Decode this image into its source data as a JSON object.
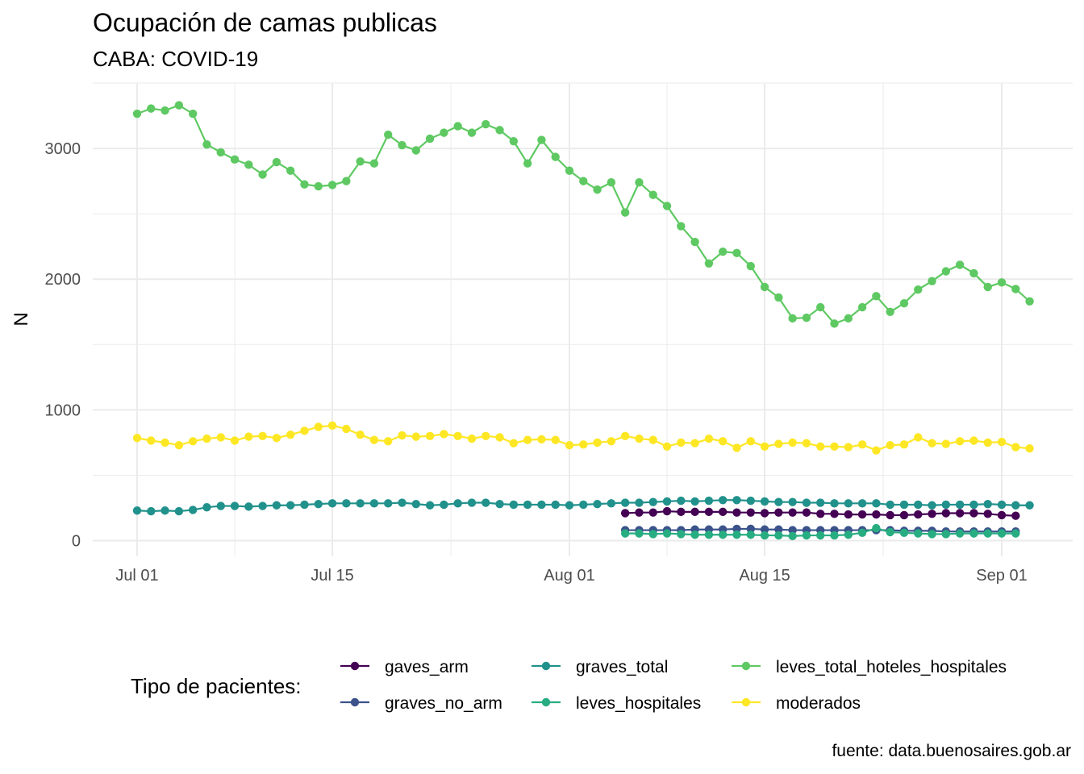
{
  "chart_data": {
    "type": "line",
    "title": "Ocupación de camas publicas",
    "subtitle": "CABA: COVID-19",
    "xlabel": "",
    "ylabel": "N",
    "caption": "fuente: data.buenosaires.gob.ar",
    "x_ticks": [
      "Jul 01",
      "Jul 15",
      "Aug 01",
      "Aug 15",
      "Sep 01"
    ],
    "x_start": "2020-07-01",
    "y_ticks": [
      "0",
      "1000",
      "2000",
      "3000"
    ],
    "ylim": [
      -120,
      3500
    ],
    "grid": true,
    "legend": {
      "title": "Tipo de pacientes:",
      "position": "bottom",
      "entries": [
        "gaves_arm",
        "graves_no_arm",
        "graves_total",
        "leves_hospitales",
        "leves_total_hoteles_hospitales",
        "moderados"
      ]
    },
    "series": [
      {
        "name": "leves_total_hoteles_hospitales",
        "color": "#5ec962",
        "start": "2020-07-01",
        "values": [
          3265,
          3305,
          3290,
          3330,
          3265,
          3030,
          2970,
          2915,
          2875,
          2800,
          2895,
          2830,
          2725,
          2710,
          2720,
          2750,
          2900,
          2885,
          3105,
          3025,
          2985,
          3075,
          3120,
          3170,
          3120,
          3185,
          3140,
          3055,
          2885,
          3065,
          2935,
          2830,
          2750,
          2685,
          2740,
          2510,
          2740,
          2645,
          2560,
          2405,
          2285,
          2120,
          2210,
          2200,
          2100,
          1940,
          1860,
          1700,
          1705,
          1785,
          1660,
          1700,
          1785,
          1870,
          1750,
          1815,
          1920,
          1985,
          2060,
          2110,
          2045,
          1940,
          1975,
          1925,
          1830
        ]
      },
      {
        "name": "moderados",
        "color": "#fde725",
        "start": "2020-07-01",
        "values": [
          785,
          765,
          750,
          730,
          760,
          780,
          790,
          765,
          795,
          800,
          785,
          810,
          840,
          870,
          880,
          855,
          810,
          770,
          760,
          805,
          795,
          800,
          815,
          800,
          780,
          800,
          790,
          745,
          770,
          775,
          770,
          730,
          735,
          750,
          760,
          800,
          780,
          770,
          720,
          750,
          745,
          780,
          760,
          710,
          760,
          720,
          740,
          750,
          745,
          720,
          720,
          715,
          735,
          690,
          730,
          735,
          790,
          745,
          740,
          760,
          765,
          750,
          755,
          715,
          705
        ]
      },
      {
        "name": "graves_total",
        "color": "#21918c",
        "start": "2020-07-01",
        "values": [
          230,
          225,
          230,
          225,
          235,
          255,
          265,
          265,
          260,
          265,
          270,
          270,
          275,
          280,
          285,
          285,
          285,
          285,
          285,
          290,
          280,
          270,
          275,
          285,
          290,
          290,
          280,
          275,
          275,
          275,
          275,
          270,
          275,
          280,
          285,
          290,
          290,
          295,
          300,
          305,
          300,
          305,
          310,
          310,
          305,
          300,
          295,
          295,
          290,
          290,
          285,
          285,
          285,
          285,
          275,
          275,
          275,
          270,
          275,
          275,
          275,
          280,
          275,
          270,
          270
        ]
      },
      {
        "name": "gaves_arm",
        "color": "#440154",
        "start": "2020-08-05",
        "values": [
          210,
          215,
          215,
          225,
          220,
          220,
          220,
          220,
          215,
          215,
          210,
          215,
          215,
          215,
          205,
          205,
          200,
          200,
          200,
          195,
          195,
          200,
          205,
          210,
          210,
          210,
          205,
          195,
          190
        ]
      },
      {
        "name": "graves_no_arm",
        "color": "#3b528b",
        "start": "2020-08-05",
        "values": [
          80,
          80,
          80,
          80,
          80,
          85,
          85,
          85,
          90,
          90,
          85,
          85,
          80,
          80,
          80,
          80,
          80,
          80,
          80,
          80,
          75,
          75,
          75,
          70,
          70,
          70,
          70,
          70,
          70
        ]
      },
      {
        "name": "leves_hospitales",
        "color": "#27ad81",
        "start": "2020-08-05",
        "values": [
          55,
          55,
          50,
          55,
          50,
          45,
          45,
          45,
          45,
          45,
          40,
          40,
          35,
          40,
          40,
          40,
          45,
          60,
          95,
          65,
          60,
          55,
          50,
          50,
          55,
          55,
          55,
          55,
          55
        ]
      }
    ]
  }
}
